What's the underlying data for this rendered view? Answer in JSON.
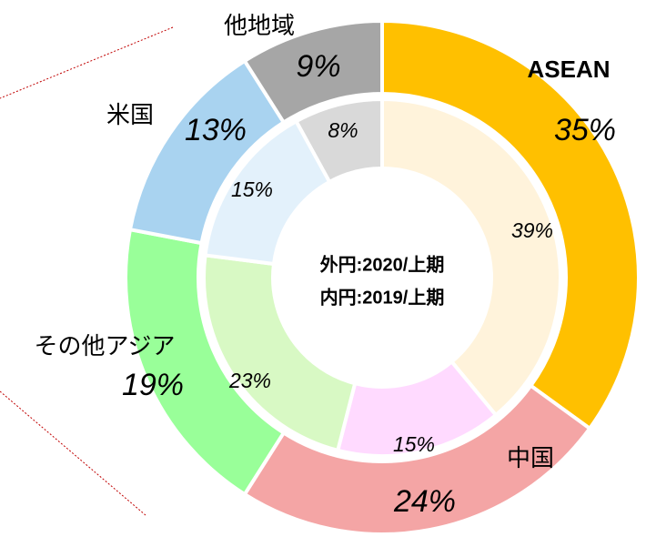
{
  "chart_data": {
    "type": "donut",
    "categories": [
      "ASEAN",
      "中国",
      "その他アジア",
      "米国",
      "他地域"
    ],
    "annotations": [
      "外円:2020/上期",
      "内円:2019/上期"
    ],
    "series": [
      {
        "values": [
          35,
          24,
          19,
          13,
          9
        ],
        "value_labels": [
          "35%",
          "24%",
          "19%",
          "13%",
          "9%"
        ],
        "colors": [
          "#FFC000",
          "#F4A5A5",
          "#99FF99",
          "#A9D3F0",
          "#A6A6A6"
        ]
      },
      {
        "values": [
          39,
          15,
          23,
          15,
          8
        ],
        "value_labels": [
          "39%",
          "15%",
          "23%",
          "15%",
          "8%"
        ],
        "colors": [
          "#FFF3DB",
          "#FFDAFF",
          "#D8F9C4",
          "#E3F1FB",
          "#D9D9D9"
        ]
      }
    ]
  }
}
